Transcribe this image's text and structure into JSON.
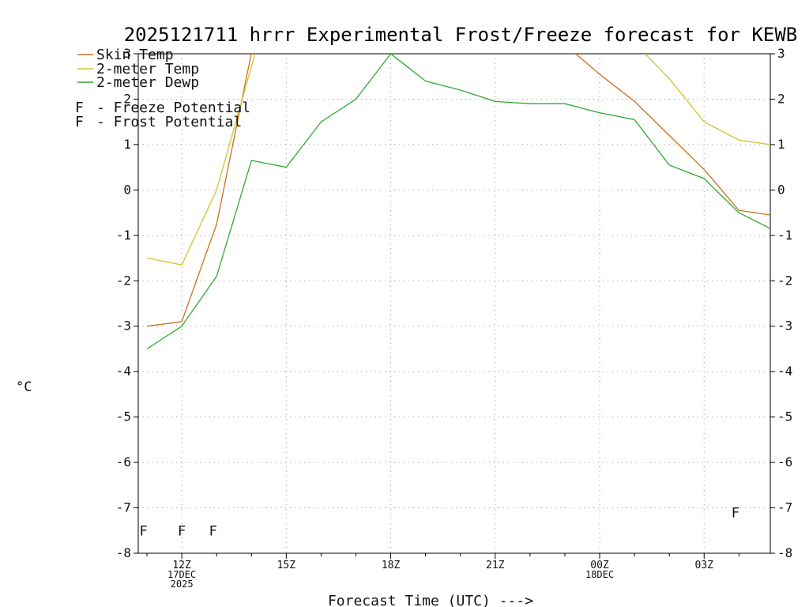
{
  "title": "2025121711 hrrr Experimental Frost/Freeze forecast for KEWB",
  "axes": {
    "y_unit_label": "°C",
    "x_axis_label": "Forecast Time (UTC) --->"
  },
  "legend": {
    "entries": [
      {
        "symbol": "line",
        "color": "#cc701e",
        "label": "Skin Temp"
      },
      {
        "symbol": "line",
        "color": "#d2c32e",
        "label": "2-meter Temp"
      },
      {
        "symbol": "line",
        "color": "#2faa2f",
        "label": "2-meter Dewp"
      },
      {
        "symbol": "F",
        "color": "#d0309c",
        "label": "- Freeze Potential"
      },
      {
        "symbol": "F",
        "color": "#3a3aee",
        "label": "- Frost Potential"
      }
    ]
  },
  "chart_data": {
    "type": "line",
    "title": "2025121711 hrrr Experimental Frost/Freeze forecast for KEWB",
    "xlabel": "Forecast Time (UTC) --->",
    "ylabel": "°C",
    "xlim": [
      10.75,
      28.9
    ],
    "ylim": [
      -8,
      3
    ],
    "grid": "dotted",
    "y_ticks": [
      3,
      2,
      1,
      0,
      -1,
      -2,
      -3,
      -4,
      -5,
      -6,
      -7,
      -8
    ],
    "y_gridlines": [
      2,
      1,
      0,
      -1,
      -2,
      -3,
      -4,
      -5,
      -6,
      -7
    ],
    "x_ticks": [
      {
        "hour": 12,
        "label": "12Z",
        "sub": [
          "17DEC",
          "2025"
        ]
      },
      {
        "hour": 15,
        "label": "15Z",
        "sub": []
      },
      {
        "hour": 18,
        "label": "18Z",
        "sub": []
      },
      {
        "hour": 21,
        "label": "21Z",
        "sub": []
      },
      {
        "hour": 24,
        "label": "00Z",
        "sub": [
          "18DEC"
        ]
      },
      {
        "hour": 27,
        "label": "03Z",
        "sub": []
      }
    ],
    "series": [
      {
        "name": "Skin Temp",
        "color": "#cc701e",
        "segments": [
          [
            [
              11,
              -3.0
            ],
            [
              12,
              -2.9
            ],
            [
              13,
              -0.75
            ],
            [
              14.1,
              3.4
            ]
          ],
          [
            [
              22.7,
              3.4
            ],
            [
              24,
              2.55
            ],
            [
              25,
              1.95
            ],
            [
              26,
              1.2
            ],
            [
              27,
              0.45
            ],
            [
              28,
              -0.45
            ],
            [
              28.9,
              -0.55
            ]
          ]
        ]
      },
      {
        "name": "2-meter Temp",
        "color": "#d2c32e",
        "segments": [
          [
            [
              11,
              -1.5
            ],
            [
              12,
              -1.65
            ],
            [
              13,
              0.0
            ],
            [
              14.25,
              3.4
            ]
          ],
          [
            [
              24.8,
              3.4
            ],
            [
              26,
              2.45
            ],
            [
              27,
              1.5
            ],
            [
              28,
              1.1
            ],
            [
              28.9,
              1.0
            ]
          ]
        ]
      },
      {
        "name": "2-meter Dewp",
        "color": "#2faa2f",
        "segments": [
          [
            [
              11,
              -3.5
            ],
            [
              12,
              -3.0
            ],
            [
              13,
              -1.9
            ],
            [
              14,
              0.65
            ],
            [
              15,
              0.5
            ],
            [
              16,
              1.5
            ],
            [
              17,
              2.0
            ],
            [
              18,
              3.0
            ],
            [
              19,
              2.4
            ],
            [
              20,
              2.2
            ],
            [
              21,
              1.95
            ],
            [
              22,
              1.9
            ],
            [
              23,
              1.9
            ],
            [
              24,
              1.7
            ],
            [
              25,
              1.55
            ],
            [
              26,
              0.55
            ],
            [
              27,
              0.25
            ],
            [
              28,
              -0.5
            ],
            [
              28.9,
              -0.85
            ]
          ]
        ]
      }
    ],
    "markers": [
      {
        "name": "Freeze Potential",
        "symbol": "F",
        "color": "#d0309c",
        "points": [
          [
            10.9,
            -7.5
          ],
          [
            12.0,
            -7.5
          ],
          [
            12.9,
            -7.5
          ]
        ]
      },
      {
        "name": "Frost Potential",
        "symbol": "F",
        "color": "#3a3aee",
        "points": [
          [
            27.9,
            -7.1
          ]
        ]
      }
    ]
  }
}
